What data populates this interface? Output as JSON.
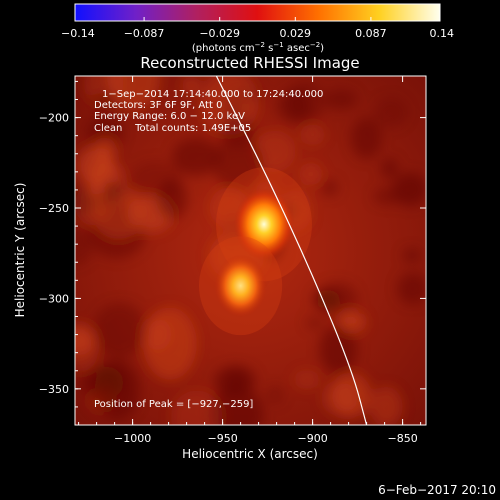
{
  "chart_data": {
    "type": "heatmap",
    "title": "Reconstructed RHESSI Image",
    "xlabel": "Heliocentric X (arcsec)",
    "ylabel": "Heliocentric Y (arcsec)",
    "xlim": [
      -1032,
      -837
    ],
    "ylim": [
      -370,
      -177
    ],
    "xticks": [
      {
        "value": -1000,
        "label": "−1000"
      },
      {
        "value": -950,
        "label": "−950"
      },
      {
        "value": -900,
        "label": "−900"
      },
      {
        "value": -850,
        "label": "−850"
      }
    ],
    "yticks": [
      {
        "value": -200,
        "label": "−200"
      },
      {
        "value": -250,
        "label": "−250"
      },
      {
        "value": -300,
        "label": "−300"
      },
      {
        "value": -350,
        "label": "−350"
      }
    ],
    "colorbar": {
      "min": -0.14,
      "max": 0.14,
      "ticks": [
        {
          "value": -0.14,
          "label": "−0.14"
        },
        {
          "value": -0.087,
          "label": "−0.087"
        },
        {
          "value": -0.029,
          "label": "−0.029"
        },
        {
          "value": 0.029,
          "label": "0.029"
        },
        {
          "value": 0.087,
          "label": "0.087"
        },
        {
          "value": 0.14,
          "label": "0.14"
        }
      ],
      "unit_parts": [
        "(photons cm",
        "−2",
        " s",
        "−1",
        " asec",
        "−2",
        ")"
      ],
      "colors": [
        "#1010ff",
        "#7020c8",
        "#b02060",
        "#e01010",
        "#ff7000",
        "#ffd020",
        "#ffffee"
      ]
    },
    "annotations": [
      "1−Sep−2014 17:14:40.000 to 17:24:40.000",
      "Detectors: 3F 6F 9F, Att 0",
      "Energy Range: 6.0 − 12.0 keV",
      "Clean    Total counts: 1.49E+05"
    ],
    "peak_text": "Position of Peak = [−927,−259]",
    "sources": [
      {
        "x": -927,
        "y": -259,
        "relative_intensity": 1.0
      },
      {
        "x": -940,
        "y": -293,
        "relative_intensity": 0.8
      }
    ],
    "limb_curve": [
      [
        -960,
        -164
      ],
      [
        -952,
        -180
      ],
      [
        -925,
        -233
      ],
      [
        -900,
        -287
      ],
      [
        -878,
        -340
      ],
      [
        -870,
        -370
      ]
    ],
    "limb_color": "#ffffff",
    "background_color": "#8a1a0a",
    "date_stamp": "6−Feb−2017 20:10"
  }
}
